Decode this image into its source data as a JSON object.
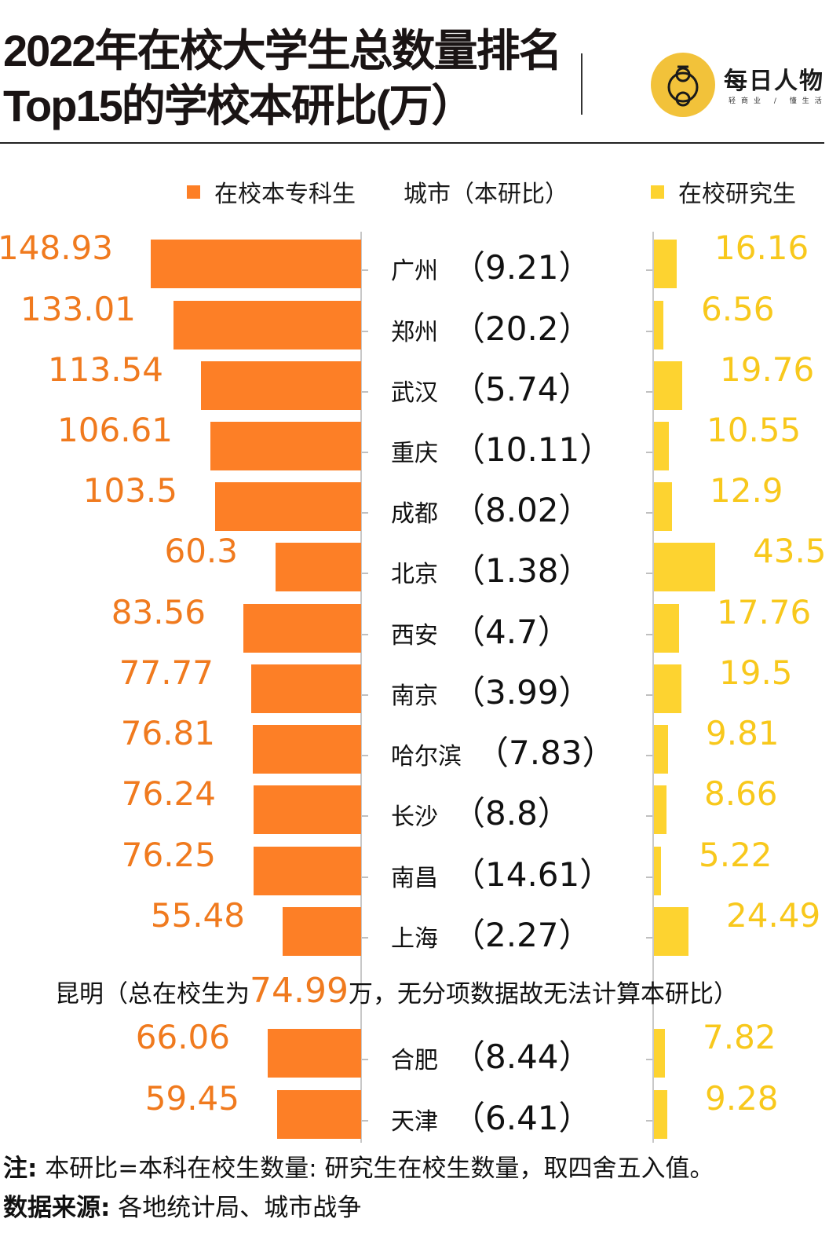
{
  "header": {
    "title_line1": "2022年在校大学生总数量排名",
    "title_line2": "Top15的学校本研比(万）",
    "logo_name": "每日人物",
    "logo_tagline": "轻商业 / 懂生活"
  },
  "legend": {
    "undergrad_label": "在校本专科生",
    "city_label": "城市（本研比）",
    "grad_label": "在校研究生"
  },
  "colors": {
    "undergrad": "#fd7f26",
    "undergrad_text": "#f07a1e",
    "grad": "#fdd330",
    "grad_text": "#f8c81c",
    "axis": "#c8c8c8"
  },
  "kunming_note": {
    "prefix": "昆明（总在校生为",
    "value": "74.99",
    "suffix": "万，无分项数据故无法计算本研比）"
  },
  "footnotes": {
    "note_label": "注:",
    "note_text": " 本研比=本科在校生数量: 研究生在校生数量，取四舍五入值。",
    "source_label": "数据来源:",
    "source_text": " 各地统计局、城市战争"
  },
  "chart_data": {
    "type": "bar",
    "orientation": "horizontal-butterfly",
    "title": "2022年在校大学生总数量排名Top15的学校本研比(万）",
    "unit": "万",
    "categories": [
      "广州",
      "郑州",
      "武汉",
      "重庆",
      "成都",
      "北京",
      "西安",
      "南京",
      "哈尔滨",
      "长沙",
      "南昌",
      "上海",
      "合肥",
      "天津"
    ],
    "series": [
      {
        "name": "在校本专科生",
        "values": [
          148.93,
          133.01,
          113.54,
          106.61,
          103.5,
          60.3,
          83.56,
          77.77,
          76.81,
          76.24,
          76.25,
          55.48,
          66.06,
          59.45
        ]
      },
      {
        "name": "在校研究生",
        "values": [
          16.16,
          6.56,
          19.76,
          10.55,
          12.9,
          43.5,
          17.76,
          19.5,
          9.81,
          8.66,
          5.22,
          24.49,
          7.82,
          9.28
        ]
      }
    ],
    "ratio_label": "本研比",
    "ratios": [
      "9.21",
      "20.2",
      "5.74",
      "10.11",
      "8.02",
      "1.38",
      "4.7",
      "3.99",
      "7.83",
      "8.8",
      "14.61",
      "2.27",
      "8.44",
      "6.41"
    ],
    "annotation": "昆明（总在校生为74.99万，无分项数据故无法计算本研比）",
    "legend_position": "top",
    "grid": false
  },
  "rows": [
    {
      "city": "广州",
      "ratio": "（9.21）",
      "undergrad": "148.93",
      "grad": "16.16"
    },
    {
      "city": "郑州",
      "ratio": "（20.2）",
      "undergrad": "133.01",
      "grad": "6.56"
    },
    {
      "city": "武汉",
      "ratio": "（5.74）",
      "undergrad": "113.54",
      "grad": "19.76"
    },
    {
      "city": "重庆",
      "ratio": "（10.11）",
      "undergrad": "106.61",
      "grad": "10.55"
    },
    {
      "city": "成都",
      "ratio": "（8.02）",
      "undergrad": "103.5",
      "grad": "12.9"
    },
    {
      "city": "北京",
      "ratio": "（1.38）",
      "undergrad": "60.3",
      "grad": "43.5"
    },
    {
      "city": "西安",
      "ratio": "（4.7）",
      "undergrad": "83.56",
      "grad": "17.76"
    },
    {
      "city": "南京",
      "ratio": "（3.99）",
      "undergrad": "77.77",
      "grad": "19.5"
    },
    {
      "city": "哈尔滨",
      "ratio": "（7.83）",
      "undergrad": "76.81",
      "grad": "9.81"
    },
    {
      "city": "长沙",
      "ratio": "（8.8）",
      "undergrad": "76.24",
      "grad": "8.66"
    },
    {
      "city": "南昌",
      "ratio": "（14.61）",
      "undergrad": "76.25",
      "grad": "5.22"
    },
    {
      "city": "上海",
      "ratio": "（2.27）",
      "undergrad": "55.48",
      "grad": "24.49"
    },
    {
      "city": "合肥",
      "ratio": "（8.44）",
      "undergrad": "66.06",
      "grad": "7.82"
    },
    {
      "city": "天津",
      "ratio": "（6.41）",
      "undergrad": "59.45",
      "grad": "9.28"
    }
  ]
}
